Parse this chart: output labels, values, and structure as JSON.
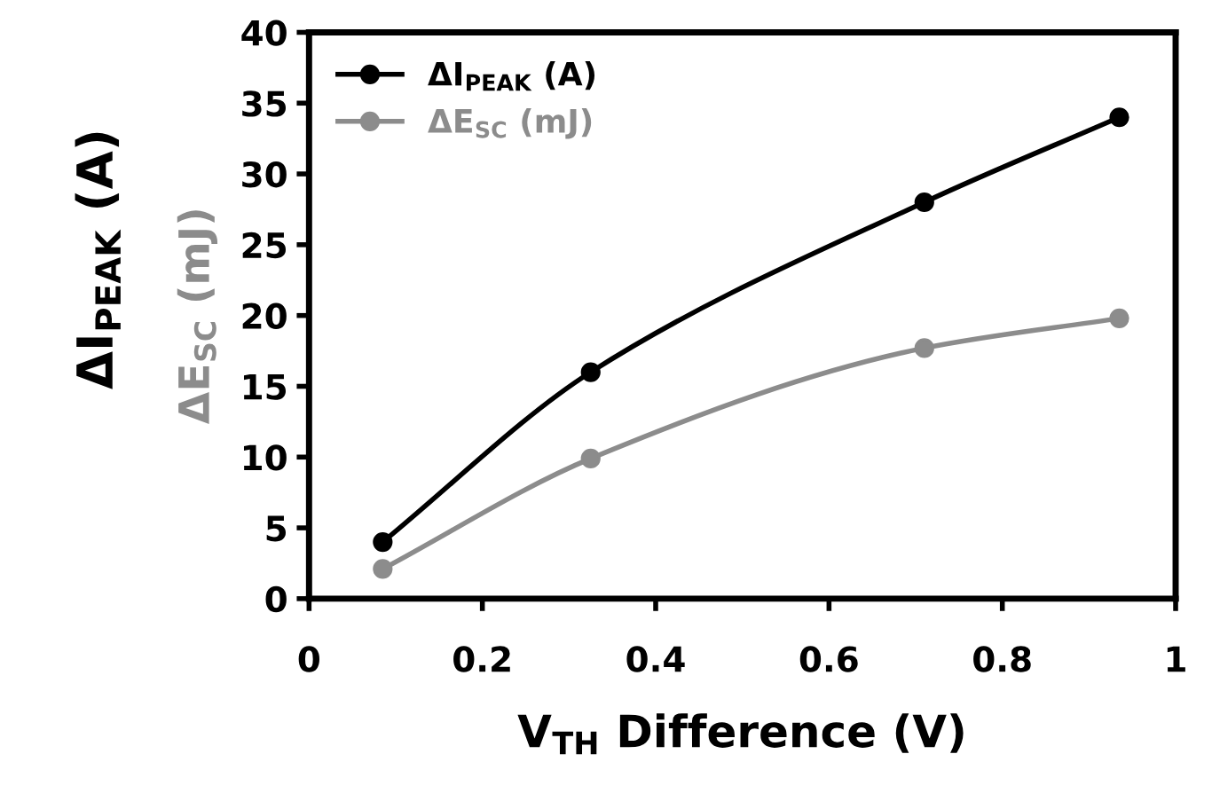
{
  "chart_data": {
    "type": "line",
    "xlabel": "V$_{TH}$ Difference (V)",
    "ylabel": "ΔI$_{PEAK}$ (A)",
    "annotations": [
      "ΔE$_{SC}$ (mJ)"
    ],
    "x": [
      0.085,
      0.325,
      0.71,
      0.935
    ],
    "series": [
      {
        "name": "ΔI$_{PEAK}$ (A)",
        "color": "#000000",
        "values": [
          4,
          16,
          28,
          34
        ]
      },
      {
        "name": "ΔE$_{SC}$ (mJ)",
        "color": "#8c8c8c",
        "values": [
          2.1,
          9.9,
          17.7,
          19.8
        ]
      }
    ],
    "xlim": [
      0,
      1
    ],
    "xticks": [
      0,
      0.2,
      0.4,
      0.6,
      0.8,
      1
    ],
    "ylim": [
      0,
      40
    ],
    "yticks": [
      0,
      5,
      10,
      15,
      20,
      25,
      30,
      35,
      40
    ],
    "grid": false,
    "legend": "top left",
    "marker": "circle",
    "line_style": "solid"
  }
}
